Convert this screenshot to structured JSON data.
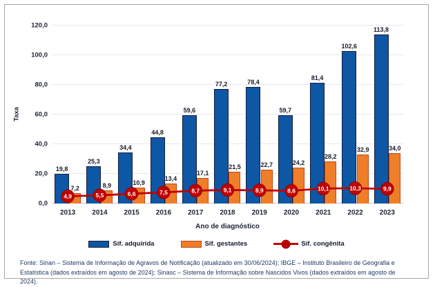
{
  "chart_data": {
    "type": "bar",
    "title": "",
    "categories": [
      "2013",
      "2014",
      "2015",
      "2016",
      "2017",
      "2018",
      "2019",
      "2020",
      "2021",
      "2022",
      "2023"
    ],
    "series": [
      {
        "name": "Síf. adquirida",
        "type": "bar",
        "color": "#0d57a5",
        "border_color": "#131c3b",
        "values": [
          19.8,
          25.3,
          34.4,
          44.8,
          59.6,
          77.2,
          78.4,
          59.7,
          81.4,
          102.6,
          113.8
        ]
      },
      {
        "name": "Síf. gestantes",
        "type": "bar",
        "color": "#f07e28",
        "border_color": "#bf4617",
        "values": [
          7.2,
          8.9,
          10.9,
          13.4,
          17.1,
          21.5,
          22.7,
          24.2,
          28.2,
          32.9,
          34.0
        ]
      },
      {
        "name": "Síf. congênita",
        "type": "line",
        "color": "#c00000",
        "marker_border": "#9b0000",
        "values": [
          4.9,
          5.5,
          6.6,
          7.5,
          8.7,
          9.1,
          8.9,
          8.6,
          10.1,
          10.3,
          9.9
        ]
      }
    ],
    "xlabel": "Ano de diagnóstico",
    "ylabel": "Taxa",
    "ylim": [
      0,
      120
    ],
    "ytick_step": 20,
    "decimal_separator": ",",
    "grid": true,
    "legend_position": "bottom"
  },
  "footer": {
    "source": "Fonte: Sinan – Sistema de Informação de Agravos de Notificação (atualizado em 30/06/2024); IBGE – Instituto Brasileiro de Geografia e Estatística (dados extraídos em agosto de 2024); Sinasc – Sistema de Informação sobre Nascidos Vivos (dados extraídos em agosto de 2024)."
  }
}
